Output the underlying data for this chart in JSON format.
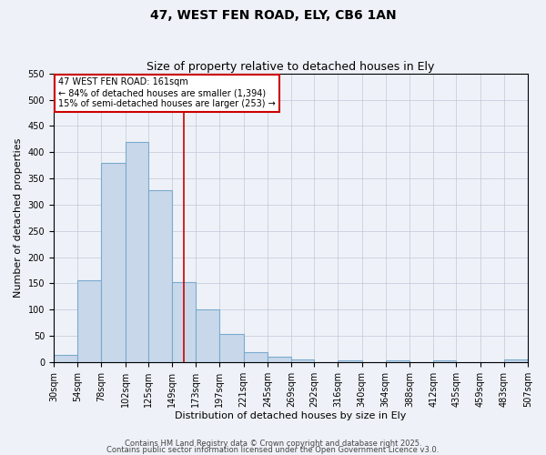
{
  "title1": "47, WEST FEN ROAD, ELY, CB6 1AN",
  "title2": "Size of property relative to detached houses in Ely",
  "xlabel": "Distribution of detached houses by size in Ely",
  "ylabel": "Number of detached properties",
  "bin_edges": [
    30,
    54,
    78,
    102,
    125,
    149,
    173,
    197,
    221,
    245,
    269,
    292,
    316,
    340,
    364,
    388,
    412,
    435,
    459,
    483,
    507
  ],
  "bin_heights": [
    14,
    155,
    380,
    420,
    328,
    153,
    100,
    54,
    19,
    10,
    5,
    0,
    4,
    0,
    3,
    0,
    3,
    0,
    0,
    5
  ],
  "bar_color": "#c8d8ea",
  "bar_edge_color": "#7aaace",
  "red_line_x": 161,
  "annotation_title": "47 WEST FEN ROAD: 161sqm",
  "annotation_line1": "← 84% of detached houses are smaller (1,394)",
  "annotation_line2": "15% of semi-detached houses are larger (253) →",
  "annotation_box_color": "#ffffff",
  "annotation_box_edge_color": "#cc0000",
  "red_line_color": "#cc0000",
  "ylim_max": 550,
  "yticks": [
    0,
    50,
    100,
    150,
    200,
    250,
    300,
    350,
    400,
    450,
    500,
    550
  ],
  "bg_color": "#eef2f8",
  "grid_color": "#c0c8d8",
  "footer1": "Contains HM Land Registry data © Crown copyright and database right 2025.",
  "footer2": "Contains public sector information licensed under the Open Government Licence v3.0.",
  "title1_fontsize": 10,
  "title2_fontsize": 9,
  "axis_label_fontsize": 8,
  "tick_fontsize": 7,
  "annotation_fontsize": 7,
  "footer_fontsize": 6
}
